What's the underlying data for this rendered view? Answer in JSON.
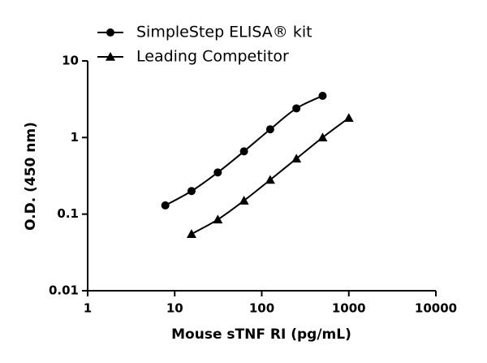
{
  "chart_data": {
    "type": "line",
    "x_label": "Mouse sTNF RI (pg/mL)",
    "y_label": "O.D. (450 nm)",
    "xscale": "log",
    "yscale": "log",
    "xlim": [
      1,
      10000
    ],
    "ylim": [
      0.01,
      10
    ],
    "xticks": [
      1,
      10,
      100,
      1000,
      10000
    ],
    "yticks": [
      0.01,
      0.1,
      1,
      10
    ],
    "legend": "top-left",
    "series": [
      {
        "name": "SimpleStep ELISA® kit",
        "color": "#000000",
        "marker": "circle",
        "x": [
          7.8,
          15.6,
          31.25,
          62.5,
          125,
          250,
          500
        ],
        "values": [
          0.13,
          0.2,
          0.35,
          0.66,
          1.28,
          2.4,
          3.5
        ]
      },
      {
        "name": "Leading Competitor",
        "color": "#000000",
        "marker": "triangle",
        "x": [
          15.6,
          31.25,
          62.5,
          125,
          250,
          500,
          1000
        ],
        "values": [
          0.055,
          0.085,
          0.15,
          0.28,
          0.53,
          1.0,
          1.8
        ]
      }
    ]
  }
}
